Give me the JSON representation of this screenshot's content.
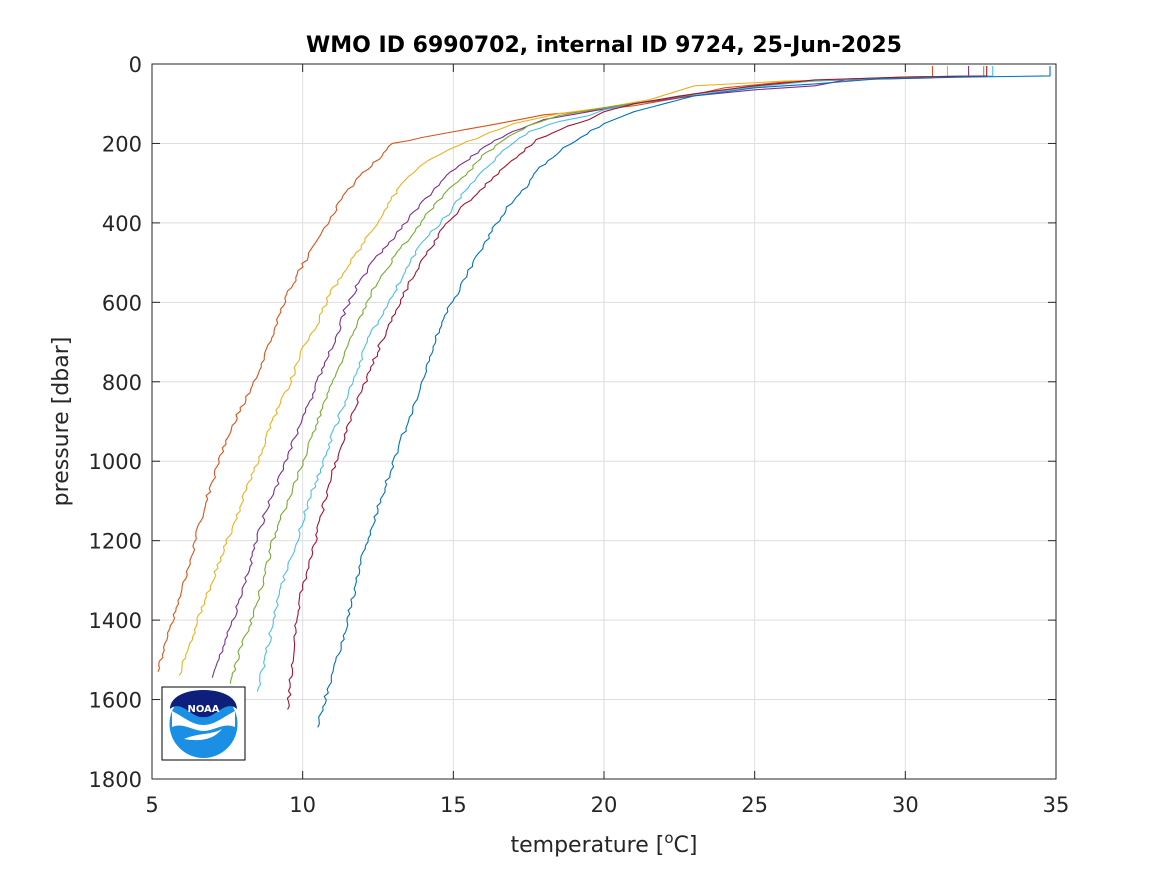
{
  "chart_data": {
    "type": "line",
    "title": "WMO ID 6990702, internal ID 9724, 25-Jun-2025",
    "xlabel_prefix": "temperature [",
    "xlabel_sup": "o",
    "xlabel_suffix": "C]",
    "ylabel": "pressure [dbar]",
    "xlim": [
      5,
      35
    ],
    "ylim": [
      0,
      1800
    ],
    "y_reversed": true,
    "grid": true,
    "xticks": [
      5,
      10,
      15,
      20,
      25,
      30,
      35
    ],
    "yticks": [
      0,
      200,
      400,
      600,
      800,
      1000,
      1200,
      1400,
      1600,
      1800
    ],
    "logo": "noaa-logo",
    "logo_text": "NOAA",
    "series": [
      {
        "color": "#D95319",
        "points": [
          [
            30.9,
            5
          ],
          [
            30.9,
            35
          ],
          [
            29,
            38
          ],
          [
            26,
            45
          ],
          [
            24,
            60
          ],
          [
            22.5,
            85
          ],
          [
            21,
            105
          ],
          [
            19.5,
            118
          ],
          [
            18,
            128
          ],
          [
            16.5,
            150
          ],
          [
            15,
            170
          ],
          [
            14,
            185
          ],
          [
            13,
            200
          ],
          [
            12.5,
            240
          ],
          [
            11.8,
            290
          ],
          [
            11.3,
            340
          ],
          [
            10.5,
            440
          ],
          [
            9.9,
            520
          ],
          [
            9.5,
            580
          ],
          [
            9,
            680
          ],
          [
            8.4,
            800
          ],
          [
            7.6,
            920
          ],
          [
            7.0,
            1050
          ],
          [
            6.6,
            1150
          ],
          [
            6.3,
            1250
          ],
          [
            5.9,
            1350
          ],
          [
            5.5,
            1450
          ],
          [
            5.2,
            1530
          ]
        ]
      },
      {
        "color": "#EDB120",
        "points": [
          [
            31.4,
            5
          ],
          [
            31.4,
            33
          ],
          [
            29,
            37
          ],
          [
            26,
            43
          ],
          [
            23,
            55
          ],
          [
            21.5,
            90
          ],
          [
            20,
            110
          ],
          [
            18.5,
            125
          ],
          [
            17,
            150
          ],
          [
            16,
            180
          ],
          [
            15,
            210
          ],
          [
            14,
            250
          ],
          [
            13.3,
            300
          ],
          [
            12.8,
            360
          ],
          [
            12.2,
            430
          ],
          [
            11.5,
            510
          ],
          [
            10.9,
            580
          ],
          [
            10.5,
            650
          ],
          [
            10,
            720
          ],
          [
            9.6,
            800
          ],
          [
            9.1,
            880
          ],
          [
            8.6,
            980
          ],
          [
            8.1,
            1080
          ],
          [
            7.6,
            1180
          ],
          [
            7.2,
            1260
          ],
          [
            6.7,
            1360
          ],
          [
            6.3,
            1450
          ],
          [
            5.9,
            1540
          ]
        ]
      },
      {
        "color": "#7E2F8E",
        "points": [
          [
            32.1,
            5
          ],
          [
            32.1,
            30
          ],
          [
            30,
            33
          ],
          [
            28,
            40
          ],
          [
            27,
            55
          ],
          [
            25,
            65
          ],
          [
            23,
            80
          ],
          [
            21,
            100
          ],
          [
            19.5,
            120
          ],
          [
            18,
            140
          ],
          [
            17,
            170
          ],
          [
            16.2,
            200
          ],
          [
            15.5,
            240
          ],
          [
            14.8,
            280
          ],
          [
            14.2,
            330
          ],
          [
            13.6,
            380
          ],
          [
            13,
            440
          ],
          [
            12.3,
            500
          ],
          [
            11.8,
            560
          ],
          [
            11.4,
            620
          ],
          [
            11.1,
            690
          ],
          [
            10.7,
            760
          ],
          [
            10.3,
            840
          ],
          [
            9.8,
            930
          ],
          [
            9.3,
            1030
          ],
          [
            8.8,
            1120
          ],
          [
            8.4,
            1220
          ],
          [
            8.0,
            1330
          ],
          [
            7.5,
            1440
          ],
          [
            7.0,
            1545
          ]
        ]
      },
      {
        "color": "#77AC30",
        "points": [
          [
            32.6,
            5
          ],
          [
            32.6,
            30
          ],
          [
            30,
            33
          ],
          [
            28,
            38
          ],
          [
            26,
            48
          ],
          [
            24,
            65
          ],
          [
            22,
            88
          ],
          [
            20,
            110
          ],
          [
            18.5,
            130
          ],
          [
            17.5,
            155
          ],
          [
            16.7,
            190
          ],
          [
            16,
            230
          ],
          [
            15.4,
            280
          ],
          [
            14.8,
            320
          ],
          [
            14.1,
            380
          ],
          [
            13.6,
            430
          ],
          [
            13,
            490
          ],
          [
            12.4,
            560
          ],
          [
            12,
            620
          ],
          [
            11.6,
            690
          ],
          [
            11.2,
            760
          ],
          [
            10.8,
            840
          ],
          [
            10.4,
            920
          ],
          [
            10,
            1000
          ],
          [
            9.5,
            1100
          ],
          [
            9,
            1200
          ],
          [
            8.7,
            1300
          ],
          [
            8.3,
            1400
          ],
          [
            7.9,
            1480
          ],
          [
            7.6,
            1560
          ]
        ]
      },
      {
        "color": "#4DBEEE",
        "points": [
          [
            32.9,
            5
          ],
          [
            32.9,
            30
          ],
          [
            30,
            33
          ],
          [
            27,
            42
          ],
          [
            25,
            58
          ],
          [
            22.5,
            80
          ],
          [
            20,
            115
          ],
          [
            19.5,
            130
          ],
          [
            18.5,
            145
          ],
          [
            17.5,
            170
          ],
          [
            16.8,
            210
          ],
          [
            16.1,
            260
          ],
          [
            15.4,
            320
          ],
          [
            14.8,
            380
          ],
          [
            14.2,
            430
          ],
          [
            13.7,
            480
          ],
          [
            13.2,
            550
          ],
          [
            12.7,
            620
          ],
          [
            12.2,
            690
          ],
          [
            11.8,
            770
          ],
          [
            11.4,
            850
          ],
          [
            11,
            930
          ],
          [
            10.6,
            1020
          ],
          [
            10.2,
            1100
          ],
          [
            9.8,
            1200
          ],
          [
            9.4,
            1290
          ],
          [
            9.1,
            1380
          ],
          [
            8.8,
            1480
          ],
          [
            8.5,
            1580
          ]
        ]
      },
      {
        "color": "#A2142F",
        "points": [
          [
            32.7,
            5
          ],
          [
            32.7,
            30
          ],
          [
            30,
            33
          ],
          [
            27,
            40
          ],
          [
            25,
            55
          ],
          [
            23,
            75
          ],
          [
            21,
            100
          ],
          [
            20,
            120
          ],
          [
            19.5,
            140
          ],
          [
            18.5,
            165
          ],
          [
            17.8,
            190
          ],
          [
            17.3,
            220
          ],
          [
            16.7,
            260
          ],
          [
            16,
            310
          ],
          [
            15.3,
            360
          ],
          [
            14.6,
            420
          ],
          [
            14.1,
            480
          ],
          [
            13.6,
            540
          ],
          [
            13.1,
            620
          ],
          [
            12.6,
            700
          ],
          [
            12.2,
            780
          ],
          [
            11.7,
            870
          ],
          [
            11.3,
            960
          ],
          [
            10.9,
            1050
          ],
          [
            10.6,
            1140
          ],
          [
            10.3,
            1240
          ],
          [
            9.9,
            1350
          ],
          [
            9.7,
            1450
          ],
          [
            9.6,
            1550
          ],
          [
            9.5,
            1625
          ]
        ]
      },
      {
        "color": "#0072BD",
        "points": [
          [
            34.8,
            5
          ],
          [
            34.8,
            30
          ],
          [
            32,
            33
          ],
          [
            29,
            38
          ],
          [
            27,
            50
          ],
          [
            25,
            60
          ],
          [
            23,
            80
          ],
          [
            22,
            100
          ],
          [
            21,
            120
          ],
          [
            20,
            150
          ],
          [
            19.2,
            185
          ],
          [
            18.5,
            220
          ],
          [
            17.9,
            260
          ],
          [
            17.4,
            310
          ],
          [
            16.8,
            360
          ],
          [
            16.2,
            430
          ],
          [
            15.6,
            510
          ],
          [
            15.1,
            580
          ],
          [
            14.6,
            650
          ],
          [
            14.3,
            720
          ],
          [
            14,
            800
          ],
          [
            13.6,
            880
          ],
          [
            13.2,
            960
          ],
          [
            12.8,
            1050
          ],
          [
            12.4,
            1140
          ],
          [
            12,
            1230
          ],
          [
            11.7,
            1330
          ],
          [
            11.4,
            1430
          ],
          [
            11,
            1530
          ],
          [
            10.7,
            1610
          ],
          [
            10.5,
            1670
          ]
        ]
      }
    ]
  }
}
